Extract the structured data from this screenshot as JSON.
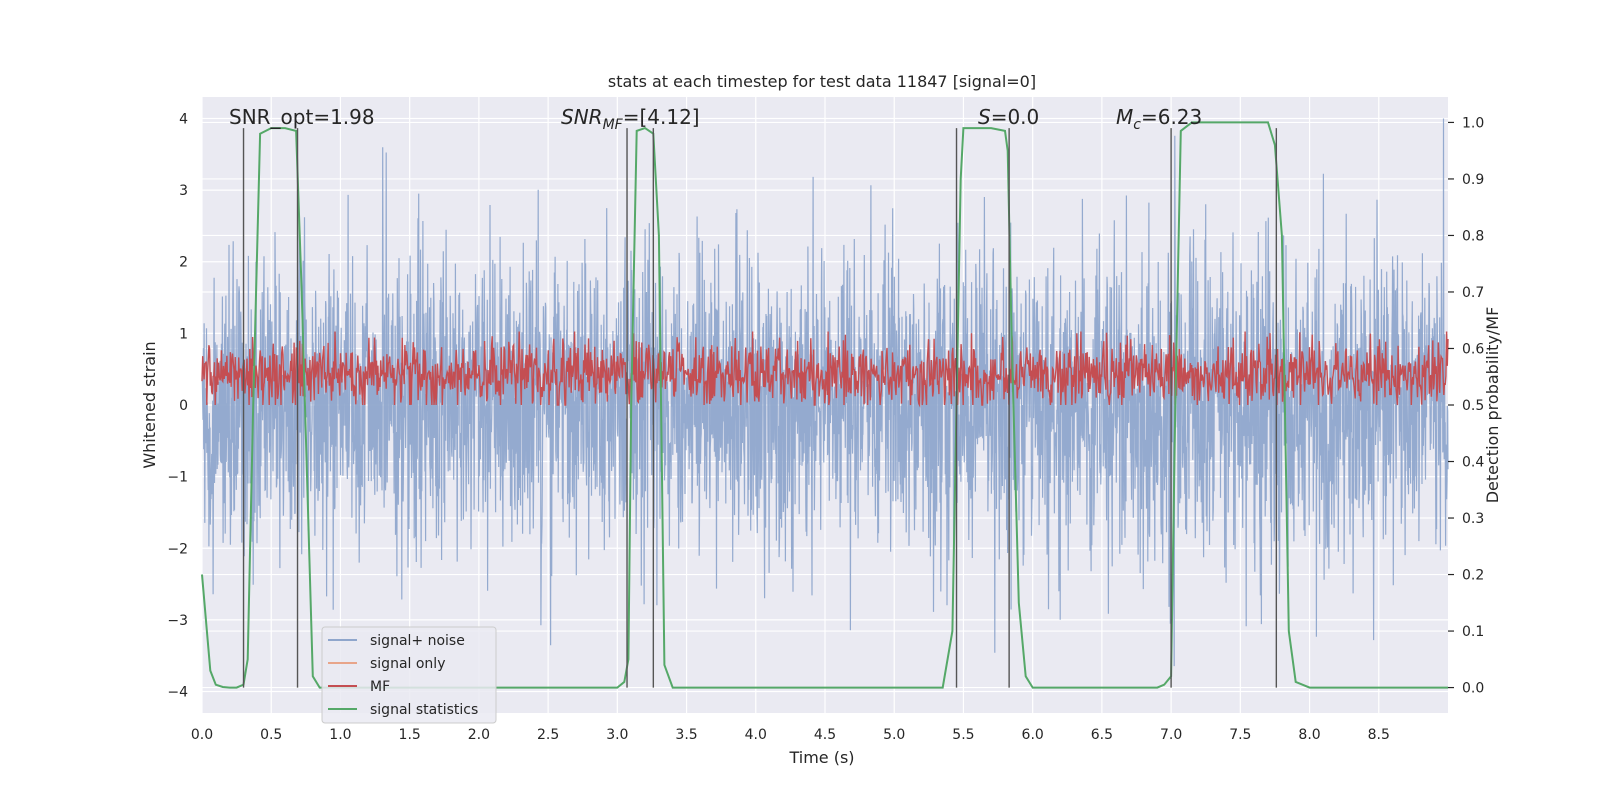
{
  "chart_data": {
    "type": "line",
    "title": "stats at each timestep for test data 11847 [signal=0]",
    "xlabel": "Time (s)",
    "ylabel_left": "Whitened strain",
    "ylabel_right": "Detection probability/MF",
    "xlim": [
      0.0,
      9.0
    ],
    "ylim_left": [
      -4.3,
      4.3
    ],
    "ylim_right": [
      -0.045,
      1.045
    ],
    "x_ticks": [
      "0.0",
      "0.5",
      "1.0",
      "1.5",
      "2.0",
      "2.5",
      "3.0",
      "3.5",
      "4.0",
      "4.5",
      "5.0",
      "5.5",
      "6.0",
      "6.5",
      "7.0",
      "7.5",
      "8.0",
      "8.5"
    ],
    "y_ticks_left": [
      "−4",
      "−3",
      "−2",
      "−1",
      "0",
      "1",
      "2",
      "3",
      "4"
    ],
    "y_ticks_right": [
      "0.0",
      "0.1",
      "0.2",
      "0.3",
      "0.4",
      "0.5",
      "0.6",
      "0.7",
      "0.8",
      "0.9",
      "1.0"
    ],
    "grid": true,
    "legend_position": "lower-left",
    "annotations": {
      "snr_opt": "SNR_opt=1.98",
      "snr_mf_main": "SNR",
      "snr_mf_sub": "MF",
      "snr_mf_rest": "=[4.12]",
      "s_main": "S",
      "s_rest": "=0.0",
      "mc_main": "M",
      "mc_sub": "c",
      "mc_rest": "=6.23"
    },
    "series": [
      {
        "name": "signal+ noise",
        "color": "#8fa6cc",
        "kind": "noise",
        "range": [
          -4.0,
          4.0
        ]
      },
      {
        "name": "signal only",
        "color": "#e8a58a",
        "kind": "flat"
      },
      {
        "name": "MF",
        "color": "#c44e52",
        "kind": "mf",
        "range": [
          0.0,
          1.0
        ]
      },
      {
        "name": "signal statistics",
        "color": "#55a868",
        "kind": "stat",
        "x": [
          0.0,
          0.06,
          0.1,
          0.15,
          0.2,
          0.25,
          0.3,
          0.33,
          0.37,
          0.42,
          0.5,
          0.6,
          0.68,
          0.72,
          0.8,
          0.85,
          0.9,
          1.0,
          2.5,
          3.0,
          3.05,
          3.08,
          3.1,
          3.14,
          3.2,
          3.26,
          3.3,
          3.34,
          3.4,
          3.5,
          5.0,
          5.35,
          5.42,
          5.45,
          5.48,
          5.5,
          5.7,
          5.8,
          5.82,
          5.85,
          5.9,
          5.95,
          6.0,
          6.5,
          6.9,
          6.95,
          7.0,
          7.03,
          7.07,
          7.15,
          7.3,
          7.5,
          7.65,
          7.7,
          7.75,
          7.8,
          7.85,
          7.9,
          8.0,
          9.0
        ],
        "y": [
          0.2,
          0.03,
          0.005,
          0.001,
          0.0,
          0.0,
          0.005,
          0.05,
          0.5,
          0.98,
          0.99,
          0.99,
          0.985,
          0.7,
          0.02,
          0.0,
          0.0,
          0.0,
          0.0,
          0.0,
          0.01,
          0.05,
          0.5,
          0.985,
          0.99,
          0.98,
          0.8,
          0.04,
          0.0,
          0.0,
          0.0,
          0.0,
          0.1,
          0.5,
          0.9,
          0.99,
          0.99,
          0.985,
          0.95,
          0.6,
          0.15,
          0.02,
          0.0,
          0.0,
          0.0,
          0.005,
          0.02,
          0.5,
          0.985,
          1.0,
          1.0,
          1.0,
          1.0,
          1.0,
          0.96,
          0.8,
          0.1,
          0.01,
          0.0,
          0.0
        ]
      }
    ],
    "vlines": [
      0.3,
      0.69,
      3.07,
      3.26,
      5.45,
      5.83,
      7.0,
      7.76
    ]
  }
}
